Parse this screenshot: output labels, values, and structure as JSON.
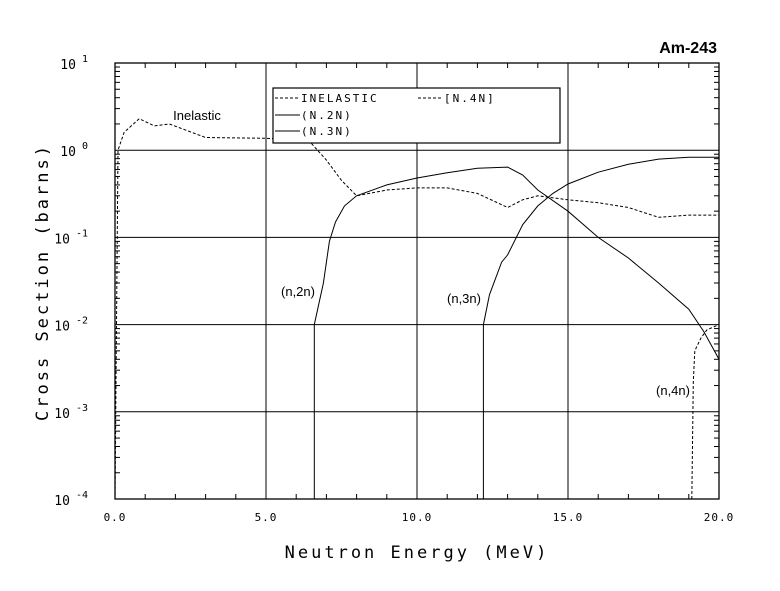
{
  "chart_data": {
    "type": "line",
    "title": "Am-243",
    "xlabel": "Neutron Energy (MeV)",
    "ylabel": "Cross Section (barns)",
    "xlim": [
      0,
      20
    ],
    "ylim": [
      0.0001,
      10
    ],
    "yscale": "log",
    "grid": true,
    "x_ticks": [
      "0.0",
      "5.0",
      "10.0",
      "15.0",
      "20.0"
    ],
    "y_ticks": [
      {
        "base": "10",
        "exp": "1"
      },
      {
        "base": "10",
        "exp": "0"
      },
      {
        "base": "10",
        "exp": "-1"
      },
      {
        "base": "10",
        "exp": "-2"
      },
      {
        "base": "10",
        "exp": "-3"
      },
      {
        "base": "10",
        "exp": "-4"
      }
    ],
    "legend_placement": "top-center",
    "series": [
      {
        "name": "INELASTIC",
        "style": "dashed",
        "label": "Inelastic",
        "x": [
          0.0,
          0.05,
          0.1,
          0.3,
          0.8,
          1.3,
          1.8,
          3.0,
          5.0,
          6.0,
          6.5,
          7.0,
          7.5,
          8.0,
          9.0,
          10.0,
          11.0,
          12.0,
          13.0,
          13.5,
          14.0,
          15.0,
          16.0,
          17.0,
          18.0,
          19.0,
          20.0
        ],
        "y": [
          0.0001,
          0.01,
          1.0,
          1.6,
          2.3,
          1.9,
          2.0,
          1.4,
          1.37,
          1.33,
          1.2,
          0.77,
          0.45,
          0.3,
          0.35,
          0.37,
          0.37,
          0.32,
          0.22,
          0.27,
          0.3,
          0.27,
          0.25,
          0.22,
          0.17,
          0.18,
          0.18
        ]
      },
      {
        "name": "(N.2N)",
        "style": "solid",
        "label": "(n,2n)",
        "x": [
          6.6,
          6.6,
          6.9,
          7.1,
          7.3,
          7.6,
          8.0,
          9.0,
          10.0,
          11.0,
          12.0,
          13.0,
          13.5,
          14.0,
          15.0,
          16.0,
          17.0,
          18.0,
          19.0,
          19.5,
          20.0
        ],
        "y": [
          0.0001,
          0.01,
          0.03,
          0.09,
          0.15,
          0.23,
          0.3,
          0.4,
          0.48,
          0.55,
          0.62,
          0.64,
          0.52,
          0.35,
          0.2,
          0.1,
          0.058,
          0.03,
          0.015,
          0.0083,
          0.004
        ]
      },
      {
        "name": "(N.3N)",
        "style": "solid",
        "label": "(n,3n)",
        "x": [
          12.2,
          12.2,
          12.4,
          12.8,
          13.0,
          13.5,
          14.0,
          14.5,
          15.0,
          16.0,
          17.0,
          18.0,
          19.0,
          20.0
        ],
        "y": [
          0.0001,
          0.01,
          0.022,
          0.052,
          0.063,
          0.14,
          0.23,
          0.32,
          0.41,
          0.56,
          0.69,
          0.79,
          0.83,
          0.83
        ]
      },
      {
        "name": "[N.4N]",
        "style": "dashed",
        "label": "(n,4n)",
        "x": [
          19.1,
          19.15,
          19.2,
          19.4,
          19.6,
          20.0
        ],
        "y": [
          0.0001,
          0.0022,
          0.005,
          0.007,
          0.0087,
          0.01
        ]
      }
    ]
  }
}
